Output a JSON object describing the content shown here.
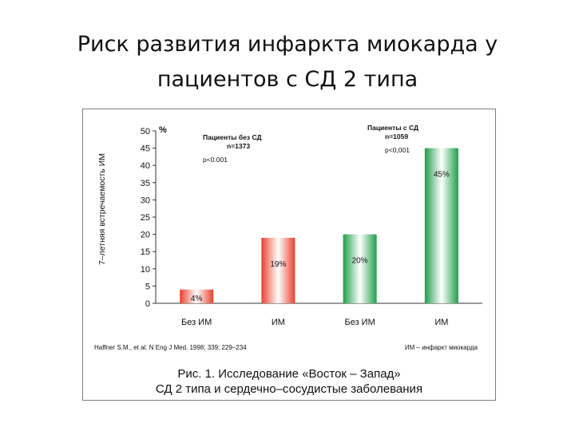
{
  "slide": {
    "title": "Риск развития инфаркта миокарда у пациентов с СД 2 типа"
  },
  "figure": {
    "caption_line1": "Рис. 1. Исследование «Восток – Запад»",
    "caption_line2": "СД 2 типа и сердечно–сосудистые заболевания",
    "reference": "Haffner S.M., et al. N Eng J Med. 1998; 339; 229–234",
    "abbreviation": "ИМ – инфаркт миокарда",
    "group1": {
      "name": "Пациенты без СД",
      "n": "n=1373",
      "p": "p<0.001"
    },
    "group2": {
      "name": "Пациенты с СД",
      "n": "n=1059",
      "p": "p<0,001"
    }
  },
  "chart_data": {
    "type": "bar",
    "categories": [
      "Без ИМ",
      "ИМ",
      "Без ИМ",
      "ИМ"
    ],
    "values": [
      4,
      19,
      20,
      45
    ],
    "value_labels": [
      "4%",
      "19%",
      "20%",
      "45%"
    ],
    "bar_colors": [
      "#e8412f",
      "#e8412f",
      "#1f9e4a",
      "#1f9e4a"
    ],
    "title": "",
    "xlabel": "",
    "ylabel": "7–летняя встречаемость ИМ",
    "yunit": "%",
    "ylim": [
      0,
      50
    ],
    "yticks": [
      0,
      5,
      10,
      15,
      20,
      25,
      30,
      35,
      40,
      45,
      50
    ],
    "grid": false
  }
}
